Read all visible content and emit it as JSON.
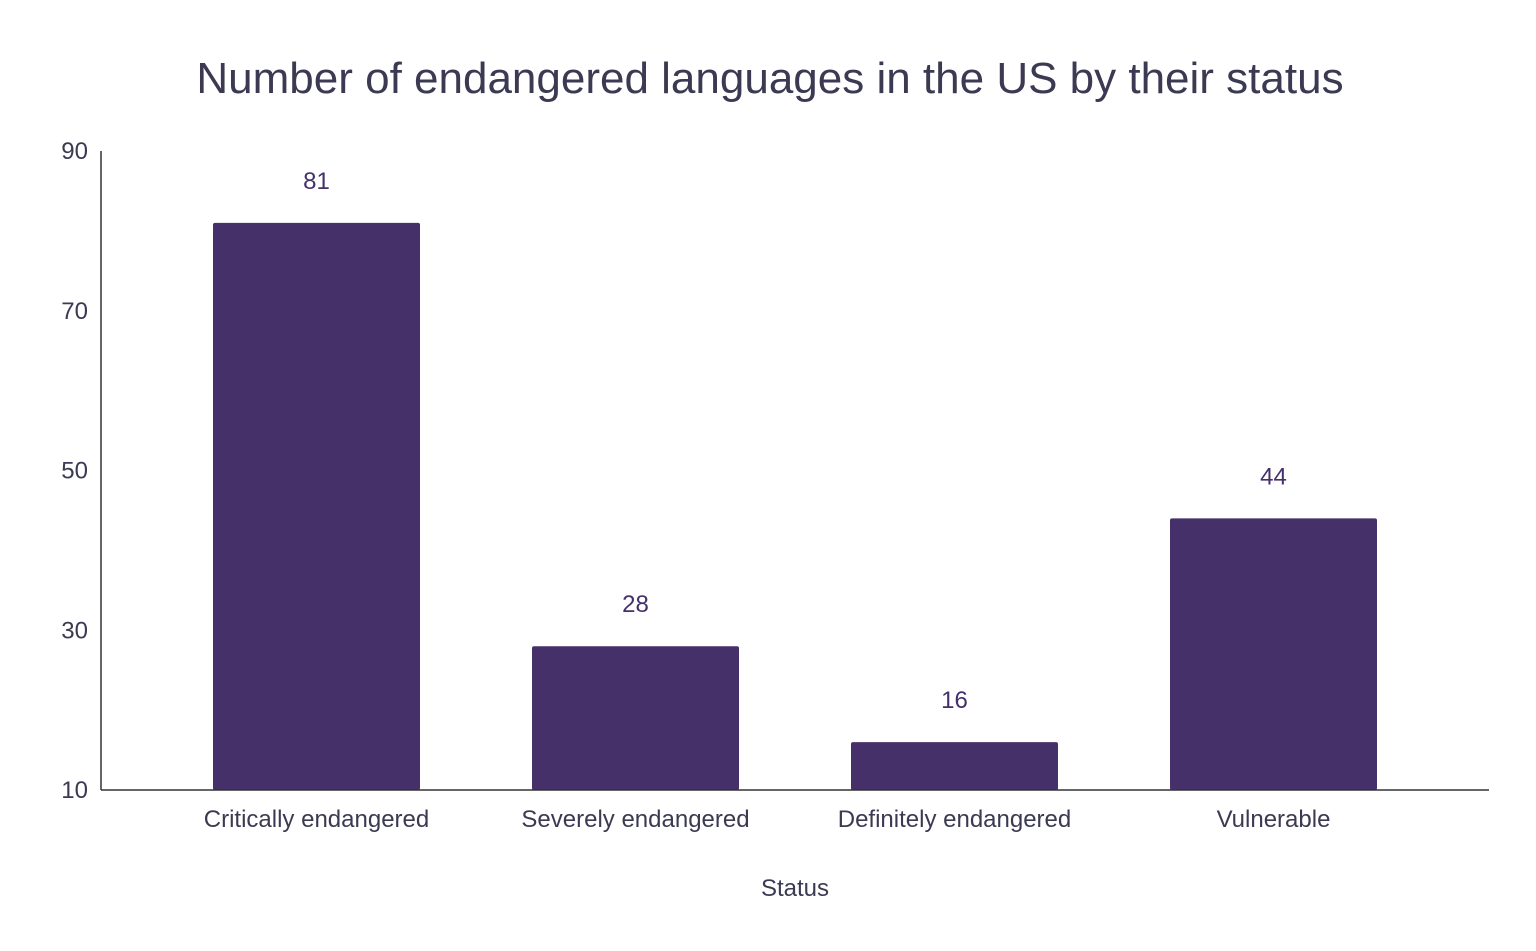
{
  "chart_data": {
    "type": "bar",
    "title": "Number of endangered languages in the US by their status",
    "xlabel": "Status",
    "ylabel": "",
    "categories": [
      "Critically endangered",
      "Severely endangered",
      "Definitely endangered",
      "Vulnerable"
    ],
    "values": [
      81,
      28,
      16,
      44
    ],
    "ylim": [
      10,
      90
    ],
    "yticks": [
      10,
      30,
      50,
      70,
      90
    ],
    "grid": false,
    "legend": "none",
    "bar_color": "#45306a",
    "label_color": "#45306a"
  }
}
